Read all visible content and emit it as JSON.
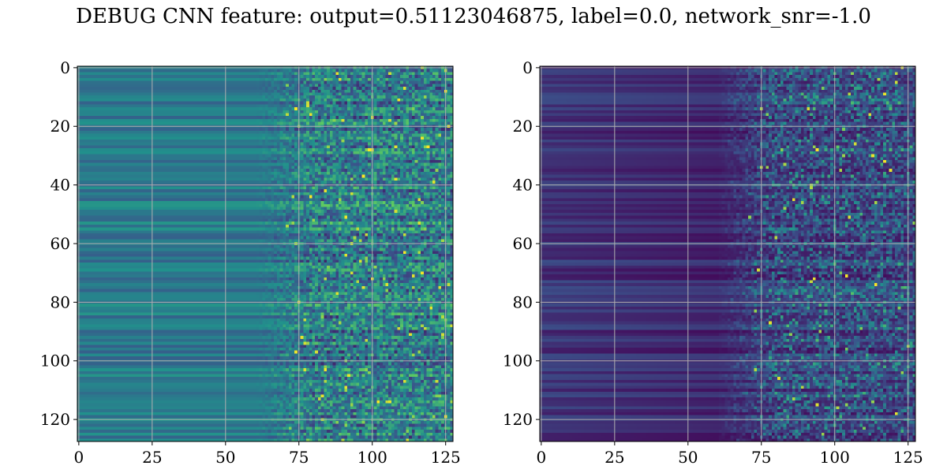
{
  "title": "DEBUG CNN feature: output=0.51123046875, label=0.0, network_snr=-1.0",
  "colormap": "viridis",
  "colormap_stops": [
    "#440154",
    "#3b528b",
    "#21918c",
    "#5ec962",
    "#fde725"
  ],
  "grid": true,
  "grid_color": "#b0b0b0",
  "chart_data": [
    {
      "type": "heatmap",
      "panel": "left",
      "title": "",
      "xlabel": "",
      "ylabel": "",
      "shape": [
        128,
        128
      ],
      "xlim": [
        -0.5,
        127.5
      ],
      "ylim": [
        127.5,
        -0.5
      ],
      "xticks": [
        0,
        25,
        50,
        75,
        100,
        125
      ],
      "xtick_labels": [
        "0",
        "25",
        "50",
        "75",
        "100",
        "125"
      ],
      "yticks": [
        0,
        20,
        40,
        60,
        80,
        100,
        120
      ],
      "ytick_labels": [
        "0",
        "20",
        "40",
        "60",
        "80",
        "100",
        "120"
      ],
      "description": "Rows show horizontal banding constant for columns 0-60; columns beyond ~70 become noisy with scattered bright (yellow-green) values; overall mid-range teal/green values",
      "value_range": [
        0.0,
        1.0
      ],
      "typical_value_smooth_region": 0.42,
      "typical_value_noisy_region": 0.5
    },
    {
      "type": "heatmap",
      "panel": "right",
      "title": "",
      "xlabel": "",
      "ylabel": "",
      "shape": [
        128,
        128
      ],
      "xlim": [
        -0.5,
        127.5
      ],
      "ylim": [
        127.5,
        -0.5
      ],
      "xticks": [
        0,
        25,
        50,
        75,
        100,
        125
      ],
      "xtick_labels": [
        "0",
        "25",
        "50",
        "75",
        "100",
        "125"
      ],
      "yticks": [
        0,
        20,
        40,
        60,
        80,
        100,
        120
      ],
      "ytick_labels": [
        "0",
        "20",
        "40",
        "60",
        "80",
        "100",
        "120"
      ],
      "description": "Mostly dark purple with faint horizontal banding for columns 0-60; columns beyond ~70 noisy with speckled blue/green and a few bright yellow pixels",
      "value_range": [
        0.0,
        1.0
      ],
      "typical_value_smooth_region": 0.15,
      "typical_value_noisy_region": 0.22
    }
  ]
}
